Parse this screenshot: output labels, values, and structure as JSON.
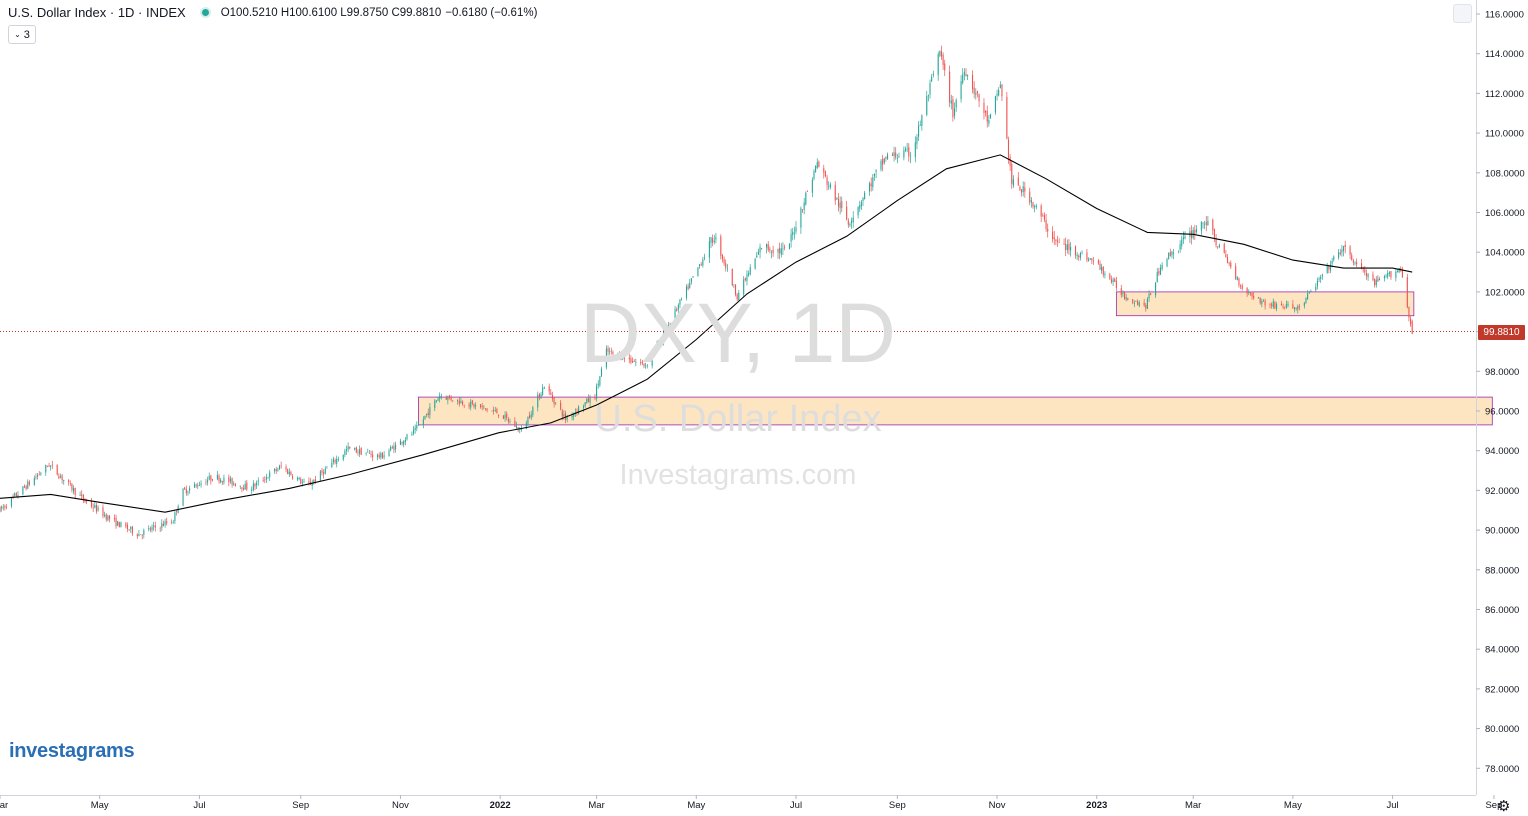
{
  "header": {
    "title": "U.S. Dollar Index · 1D · INDEX",
    "ohlc": "O100.5210 H100.6100 L99.8750 C99.8810",
    "change": "−0.6180 (−0.61%)",
    "collapse_label": "3"
  },
  "watermark": {
    "line1": "DXY, 1D",
    "line2": "U.S. Dollar Index",
    "line3": "Investagrams.com"
  },
  "logo": "investagrams",
  "last_price_label": "99.8810",
  "colors": {
    "up": "#26a69a",
    "down": "#ef5350",
    "zone_fill": "#fde5c1",
    "zone_border": "#9c27b0",
    "ma_line": "#000000",
    "price_tag": "#c0392b"
  },
  "icons": {
    "settings": "gear-icon",
    "collapse": "chevron-down-icon"
  },
  "chart_data": {
    "type": "candlestick",
    "title": "U.S. Dollar Index",
    "symbol": "DXY",
    "interval": "1D",
    "ylim": [
      77,
      116.5
    ],
    "y_ticks": [
      "116.0000",
      "114.0000",
      "112.0000",
      "110.0000",
      "108.0000",
      "106.0000",
      "104.0000",
      "102.0000",
      "100.0000",
      "98.0000",
      "96.0000",
      "94.0000",
      "92.0000",
      "90.0000",
      "88.0000",
      "86.0000",
      "84.0000",
      "82.0000",
      "80.0000",
      "78.0000"
    ],
    "x_ticks": [
      "Mar",
      "May",
      "Jul",
      "Sep",
      "Nov",
      "2022",
      "Mar",
      "May",
      "Jul",
      "Sep",
      "Nov",
      "2023",
      "Mar",
      "May",
      "Jul",
      "Sep"
    ],
    "date_range": [
      "2021-03-01",
      "2023-09-10"
    ],
    "last_bar": {
      "open": 100.521,
      "high": 100.61,
      "low": 99.875,
      "close": 99.881,
      "change": -0.618,
      "change_pct": -0.61
    },
    "price_path": [
      [
        "2021-03-01",
        91.0
      ],
      [
        "2021-03-31",
        93.3
      ],
      [
        "2021-04-20",
        91.6
      ],
      [
        "2021-05-10",
        90.4
      ],
      [
        "2021-05-25",
        89.8
      ],
      [
        "2021-06-15",
        90.5
      ],
      [
        "2021-06-20",
        91.9
      ],
      [
        "2021-07-10",
        92.7
      ],
      [
        "2021-08-01",
        92.1
      ],
      [
        "2021-08-20",
        93.2
      ],
      [
        "2021-09-05",
        92.2
      ],
      [
        "2021-09-30",
        94.1
      ],
      [
        "2021-10-20",
        93.7
      ],
      [
        "2021-11-10",
        95.0
      ],
      [
        "2021-11-25",
        96.8
      ],
      [
        "2021-12-31",
        95.9
      ],
      [
        "2022-01-14",
        95.0
      ],
      [
        "2022-01-28",
        97.3
      ],
      [
        "2022-02-10",
        95.6
      ],
      [
        "2022-02-28",
        96.8
      ],
      [
        "2022-03-07",
        99.0
      ],
      [
        "2022-03-31",
        98.3
      ],
      [
        "2022-04-15",
        100.5
      ],
      [
        "2022-05-12",
        104.8
      ],
      [
        "2022-05-26",
        101.8
      ],
      [
        "2022-06-10",
        104.3
      ],
      [
        "2022-06-25",
        104.0
      ],
      [
        "2022-07-14",
        108.5
      ],
      [
        "2022-08-02",
        105.5
      ],
      [
        "2022-08-25",
        108.8
      ],
      [
        "2022-09-10",
        109.0
      ],
      [
        "2022-09-27",
        114.1
      ],
      [
        "2022-10-05",
        111.0
      ],
      [
        "2022-10-12",
        113.3
      ],
      [
        "2022-10-27",
        110.5
      ],
      [
        "2022-11-03",
        112.5
      ],
      [
        "2022-11-10",
        107.5
      ],
      [
        "2022-11-20",
        106.9
      ],
      [
        "2022-12-07",
        104.5
      ],
      [
        "2022-12-31",
        103.5
      ],
      [
        "2023-01-18",
        101.8
      ],
      [
        "2023-01-31",
        101.3
      ],
      [
        "2023-02-10",
        103.5
      ],
      [
        "2023-03-08",
        105.6
      ],
      [
        "2023-03-31",
        102.2
      ],
      [
        "2023-04-14",
        101.4
      ],
      [
        "2023-05-05",
        101.2
      ],
      [
        "2023-05-31",
        104.2
      ],
      [
        "2023-06-20",
        102.4
      ],
      [
        "2023-07-06",
        103.2
      ],
      [
        "2023-07-13",
        99.88
      ]
    ],
    "moving_average": [
      [
        "2021-03-01",
        91.6
      ],
      [
        "2021-04-01",
        91.8
      ],
      [
        "2021-05-01",
        91.4
      ],
      [
        "2021-06-10",
        90.9
      ],
      [
        "2021-07-15",
        91.5
      ],
      [
        "2021-08-25",
        92.1
      ],
      [
        "2021-10-01",
        92.8
      ],
      [
        "2021-11-15",
        93.8
      ],
      [
        "2021-12-31",
        94.9
      ],
      [
        "2022-02-01",
        95.4
      ],
      [
        "2022-03-01",
        96.3
      ],
      [
        "2022-04-01",
        97.6
      ],
      [
        "2022-05-01",
        99.6
      ],
      [
        "2022-06-01",
        101.9
      ],
      [
        "2022-07-01",
        103.5
      ],
      [
        "2022-08-01",
        104.8
      ],
      [
        "2022-09-01",
        106.6
      ],
      [
        "2022-10-01",
        108.2
      ],
      [
        "2022-11-03",
        108.9
      ],
      [
        "2022-12-01",
        107.7
      ],
      [
        "2023-01-01",
        106.2
      ],
      [
        "2023-02-01",
        105.0
      ],
      [
        "2023-03-01",
        104.9
      ],
      [
        "2023-04-01",
        104.4
      ],
      [
        "2023-05-01",
        103.6
      ],
      [
        "2023-06-01",
        103.2
      ],
      [
        "2023-07-01",
        103.2
      ],
      [
        "2023-07-13",
        103.0
      ]
    ],
    "zones": [
      {
        "from": "2021-11-12",
        "to": "2023-08-31",
        "low": 95.3,
        "high": 96.7
      },
      {
        "from": "2023-01-13",
        "to": "2023-07-14",
        "low": 100.8,
        "high": 102.0
      }
    ],
    "grid": false,
    "legend": "top-left"
  }
}
